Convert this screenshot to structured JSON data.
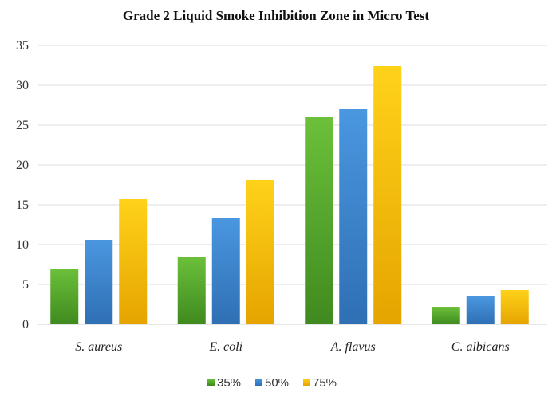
{
  "chart_data": {
    "type": "bar",
    "title": "Grade 2 Liquid Smoke Inhibition Zone in Micro Test",
    "xlabel": "",
    "ylabel": "",
    "categories": [
      "S. aureus",
      "E. coli",
      "A. flavus",
      "C. albicans"
    ],
    "series": [
      {
        "name": "35%",
        "values": [
          7,
          8.5,
          26,
          2.2
        ],
        "color": "#5aa02c"
      },
      {
        "name": "50%",
        "values": [
          10.6,
          13.4,
          27,
          3.5
        ],
        "color": "#3a86d1"
      },
      {
        "name": "75%",
        "values": [
          15.7,
          18.1,
          32.4,
          4.3
        ],
        "color": "#f5b800"
      }
    ],
    "ylim": [
      0,
      35
    ],
    "yticks": [
      0,
      5,
      10,
      15,
      20,
      25,
      30,
      35
    ],
    "grid": true,
    "legend_position": "bottom"
  }
}
